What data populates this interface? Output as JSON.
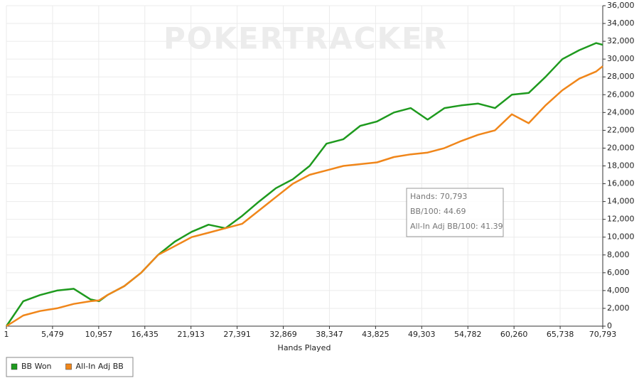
{
  "chart_data": {
    "type": "line",
    "watermark": "POKERTRACKER",
    "x_label": "Hands Played",
    "tooltip": [
      "Hands: 70,793",
      "BB/100: 44.69",
      "All-In Adj BB/100: 41.39"
    ],
    "x": [
      1,
      2000,
      4000,
      6000,
      8000,
      10000,
      11000,
      12000,
      14000,
      16000,
      18000,
      20000,
      22000,
      24000,
      26000,
      28000,
      30000,
      32000,
      34000,
      36000,
      38000,
      40000,
      42000,
      44000,
      46000,
      48000,
      50000,
      52000,
      54000,
      56000,
      58000,
      60000,
      62000,
      64000,
      66000,
      68000,
      70000,
      70793
    ],
    "series": [
      {
        "name": "BB Won",
        "color": "#1e9a1e",
        "values": [
          0,
          2800,
          3500,
          4000,
          4200,
          3000,
          2800,
          3500,
          4500,
          6000,
          8000,
          9500,
          10600,
          11400,
          11000,
          12400,
          14000,
          15500,
          16500,
          18000,
          20500,
          21000,
          22500,
          23000,
          24000,
          24500,
          23200,
          24500,
          24800,
          25000,
          24500,
          26000,
          26200,
          28000,
          30000,
          31000,
          31800,
          31600
        ]
      },
      {
        "name": "All-In Adj BB",
        "color": "#f0861a",
        "values": [
          0,
          1200,
          1700,
          2000,
          2500,
          2800,
          2900,
          3500,
          4500,
          6000,
          8000,
          9000,
          10000,
          10500,
          11000,
          11500,
          13000,
          14500,
          16000,
          17000,
          17500,
          18000,
          18200,
          18400,
          19000,
          19300,
          19500,
          20000,
          20800,
          21500,
          22000,
          23800,
          22800,
          24800,
          26500,
          27800,
          28600,
          29200
        ]
      }
    ],
    "xlim": [
      1,
      70793
    ],
    "xticks": [
      1,
      {
        "value": 5479,
        "label": "5,479"
      },
      {
        "value": 10957,
        "label": "10,957"
      },
      {
        "value": 16435,
        "label": "16,435"
      },
      {
        "value": 21913,
        "label": "21,913"
      },
      {
        "value": 27391,
        "label": "27,391"
      },
      {
        "value": 32869,
        "label": "32,869"
      },
      {
        "value": 38347,
        "label": "38,347"
      },
      {
        "value": 43825,
        "label": "43,825"
      },
      {
        "value": 49303,
        "label": "49,303"
      },
      {
        "value": 54782,
        "label": "54,782"
      },
      {
        "value": 60260,
        "label": "60,260"
      },
      {
        "value": 65738,
        "label": "65,738"
      },
      {
        "value": 70793,
        "label": "70,793"
      }
    ],
    "ylim": [
      0,
      36000
    ],
    "yticks": [
      0,
      {
        "value": 2000,
        "label": "2,000"
      },
      {
        "value": 4000,
        "label": "4,000"
      },
      {
        "value": 6000,
        "label": "6,000"
      },
      {
        "value": 8000,
        "label": "8,000"
      },
      {
        "value": 10000,
        "label": "10,000"
      },
      {
        "value": 12000,
        "label": "12,000"
      },
      {
        "value": 14000,
        "label": "14,000"
      },
      {
        "value": 16000,
        "label": "16,000"
      },
      {
        "value": 18000,
        "label": "18,000"
      },
      {
        "value": 20000,
        "label": "20,000"
      },
      {
        "value": 22000,
        "label": "22,000"
      },
      {
        "value": 24000,
        "label": "24,000"
      },
      {
        "value": 26000,
        "label": "26,000"
      },
      {
        "value": 28000,
        "label": "28,000"
      },
      {
        "value": 30000,
        "label": "30,000"
      },
      {
        "value": 32000,
        "label": "32,000"
      },
      {
        "value": 34000,
        "label": "34,000"
      },
      {
        "value": 36000,
        "label": "36,000"
      }
    ],
    "grid": true
  }
}
